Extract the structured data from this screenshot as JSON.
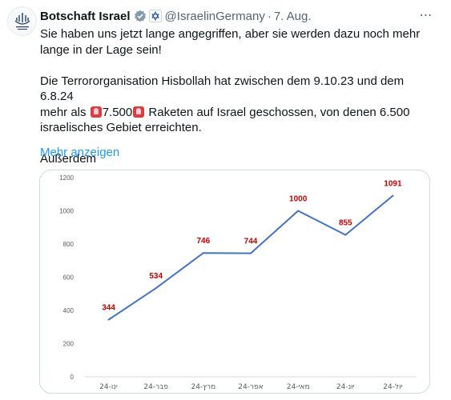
{
  "tweet": {
    "author_name": "Botschaft Israel",
    "handle": "@IsraelinGermany",
    "separator": "·",
    "date": "7. Aug.",
    "line1": "Sie haben uns jetzt lange angegriffen, aber sie werden dazu noch mehr",
    "line2": "lange in der Lage sein!",
    "line3": "Die Terrororganisation Hisbollah hat zwischen dem 9.10.23 und dem 6.8.24",
    "line4_a": "mehr als ",
    "line4_b": "7.500",
    "line4_c": " Raketen auf Israel geschossen, von denen 6.500",
    "line5": "israelisches Gebiet erreichten.",
    "line6": "Außerdem",
    "show_more": "Mehr anzeigen",
    "more_icon": "⋯"
  },
  "icons": {
    "avatar": "emblem-of-israel-icon",
    "verified": "verified-badge-icon",
    "affiliation": "affiliate-badge-icon",
    "more": "more-options-icon",
    "emoji": "rotating-light-icon"
  },
  "colors": {
    "accent": "#1d9bf0",
    "verified_badge": "#829aab",
    "line": "#4472c4",
    "data_label": "#c00000"
  },
  "chart_data": {
    "type": "line",
    "categories": [
      "ינו-24",
      "פבר-24",
      "מרץ-24",
      "אפר-24",
      "מאי-24",
      "יונ-24",
      "יול-24"
    ],
    "values": [
      344,
      534,
      746,
      744,
      1000,
      855,
      1091
    ],
    "ylim": [
      0,
      1200
    ],
    "yticks": [
      0,
      200,
      400,
      600,
      800,
      1000,
      1200
    ],
    "grid": false,
    "title": "",
    "xlabel": "",
    "ylabel": ""
  }
}
